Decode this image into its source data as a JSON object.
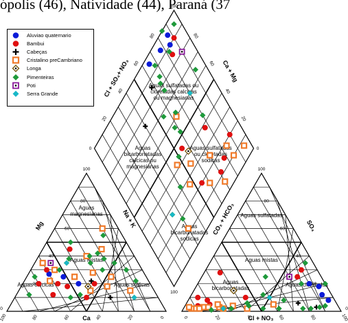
{
  "top_text": "ópolis (46), Natividade (44), Paraná (37",
  "legend": [
    {
      "label": "Aluviao quaternario",
      "marker": "circle",
      "color": "#0b1bd8"
    },
    {
      "label": "Bambui",
      "marker": "circle",
      "color": "#e01010"
    },
    {
      "label": "Cabeças",
      "marker": "plus",
      "color": "#000000"
    },
    {
      "label": "Cristalino preCambriano",
      "marker": "square",
      "color": "#f07a2a"
    },
    {
      "label": "Longa",
      "marker": "diamond-dot",
      "color": "#7a5a10"
    },
    {
      "label": "Pimenteiras",
      "marker": "diamond",
      "color": "#1f9a3a"
    },
    {
      "label": "Poti",
      "marker": "square-dot",
      "color": "#8a1a9a"
    },
    {
      "label": "Serra Grande",
      "marker": "diamond",
      "color": "#18b8c8"
    }
  ],
  "chart_data": {
    "type": "scatter",
    "subtype": "piper-trilinear",
    "grid": true,
    "legend_position": "top-left",
    "cation_triangle": {
      "axis_labels": {
        "left": "Mg",
        "bottom": "Ca",
        "right": "Na + K"
      },
      "tick_labels": [
        "0",
        "20",
        "40",
        "60",
        "80",
        "100"
      ],
      "field_labels": [
        "Aguas magnesianas",
        "Aguas mistas",
        "Aguas calcicas",
        "Aguas sodicas"
      ]
    },
    "anion_triangle": {
      "axis_labels": {
        "left": "CO₃ + HCO₃",
        "bottom": "Cl + NO₃",
        "right": "SO₄"
      },
      "tick_labels": [
        "0",
        "20",
        "40",
        "60",
        "80",
        "100"
      ],
      "field_labels": [
        "Aguas sulfatadas",
        "Aguas mistas",
        "Aguas bicarbonatadas",
        "Aguas cloretadas"
      ]
    },
    "diamond": {
      "axis_labels": {
        "upper_left": "Cl + SO₄+ NO₃",
        "upper_right": "Ca + Mg"
      },
      "tick_labels": [
        "0",
        "20",
        "40",
        "60",
        "80",
        "100"
      ],
      "field_labels": [
        "Aguas sulfatadas ou cloretadas calcicas ou magnesianas",
        "Aguas bicarbonatadas calcicas ou magnesianas",
        "Aguas sulfatadas ou cloretadas sodicas",
        "Aguas bicarbonatadas sodicas"
      ]
    },
    "series": [
      {
        "name": "Aluviao quaternario",
        "samples": [
          {
            "ca": 55,
            "mg": 30,
            "so4": 20,
            "cl": 70
          },
          {
            "ca": 60,
            "mg": 27,
            "so4": 18,
            "cl": 77
          },
          {
            "ca": 52,
            "mg": 25,
            "so4": 12,
            "cl": 82
          },
          {
            "ca": 45,
            "mg": 20,
            "so4": 8,
            "cl": 88
          }
        ]
      },
      {
        "name": "Bambui",
        "samples": [
          {
            "ca": 70,
            "mg": 20,
            "so4": 5,
            "cl": 15
          },
          {
            "ca": 65,
            "mg": 12,
            "so4": 28,
            "cl": 10
          },
          {
            "ca": 58,
            "mg": 20,
            "so4": 10,
            "cl": 5
          },
          {
            "ca": 53,
            "mg": 18,
            "so4": 4,
            "cl": 8
          },
          {
            "ca": 35,
            "mg": 20,
            "so4": 10,
            "cl": 35
          },
          {
            "ca": 38,
            "mg": 45,
            "so4": 25,
            "cl": 60
          },
          {
            "ca": 60,
            "mg": 30,
            "so4": 30,
            "cl": 60
          },
          {
            "ca": 45,
            "mg": 10,
            "so4": 8,
            "cl": 12
          }
        ]
      },
      {
        "name": "Cabeças",
        "samples": [
          {
            "ca": 30,
            "mg": 10,
            "so4": 6,
            "cl": 70
          },
          {
            "ca": 36,
            "mg": 22,
            "so4": 3,
            "cl": 83
          }
        ]
      },
      {
        "name": "Cristalino preCambriano",
        "samples": [
          {
            "ca": 60,
            "mg": 35,
            "so4": 2,
            "cl": 5
          },
          {
            "ca": 55,
            "mg": 30,
            "so4": 2,
            "cl": 8
          },
          {
            "ca": 62,
            "mg": 22,
            "so4": 3,
            "cl": 15
          },
          {
            "ca": 45,
            "mg": 25,
            "so4": 3,
            "cl": 22
          },
          {
            "ca": 40,
            "mg": 15,
            "so4": 4,
            "cl": 30
          },
          {
            "ca": 32,
            "mg": 28,
            "so4": 3,
            "cl": 12
          },
          {
            "ca": 28,
            "mg": 18,
            "so4": 2,
            "cl": 40
          },
          {
            "ca": 30,
            "mg": 40,
            "so4": 3,
            "cl": 3
          },
          {
            "ca": 22,
            "mg": 25,
            "so4": 2,
            "cl": 25
          },
          {
            "ca": 18,
            "mg": 45,
            "so4": 5,
            "cl": 55
          },
          {
            "ca": 15,
            "mg": 15,
            "so4": 2,
            "cl": 10
          },
          {
            "ca": 10,
            "mg": 60,
            "so4": 5,
            "cl": 20
          }
        ]
      },
      {
        "name": "Longa",
        "samples": [
          {
            "ca": 40,
            "mg": 18,
            "so4": 15,
            "cl": 25
          }
        ]
      },
      {
        "name": "Pimenteiras",
        "samples": [
          {
            "ca": 70,
            "mg": 25,
            "so4": 35,
            "cl": 60
          },
          {
            "ca": 80,
            "mg": 12,
            "so4": 25,
            "cl": 40
          },
          {
            "ca": 55,
            "mg": 10,
            "so4": 2,
            "cl": 80
          },
          {
            "ca": 52,
            "mg": 30,
            "so4": 3,
            "cl": 85
          },
          {
            "ca": 30,
            "mg": 35,
            "so4": 2,
            "cl": 75
          },
          {
            "ca": 28,
            "mg": 40,
            "so4": 4,
            "cl": 88
          },
          {
            "ca": 25,
            "mg": 30,
            "so4": 8,
            "cl": 60
          },
          {
            "ca": 22,
            "mg": 42,
            "so4": 2,
            "cl": 60
          },
          {
            "ca": 20,
            "mg": 38,
            "so4": 12,
            "cl": 45
          },
          {
            "ca": 35,
            "mg": 50,
            "so4": 20,
            "cl": 80
          },
          {
            "ca": 15,
            "mg": 35,
            "so4": 4,
            "cl": 40
          },
          {
            "ca": 12,
            "mg": 55,
            "so4": 20,
            "cl": 65
          },
          {
            "ca": 10,
            "mg": 30,
            "so4": 2,
            "cl": 30
          },
          {
            "ca": 8,
            "mg": 22,
            "so4": 1,
            "cl": 18
          },
          {
            "ca": 42,
            "mg": 38,
            "so4": 6,
            "cl": 38
          },
          {
            "ca": 48,
            "mg": 12,
            "so4": 2,
            "cl": 50
          }
        ]
      },
      {
        "name": "Poti",
        "samples": [
          {
            "ca": 55,
            "mg": 35,
            "so4": 25,
            "cl": 55
          }
        ]
      },
      {
        "name": "Serra Grande",
        "samples": [
          {
            "ca": 45,
            "mg": 35,
            "so4": 10,
            "cl": 50
          },
          {
            "ca": 15,
            "mg": 10,
            "so4": 2,
            "cl": 25
          }
        ]
      }
    ]
  }
}
